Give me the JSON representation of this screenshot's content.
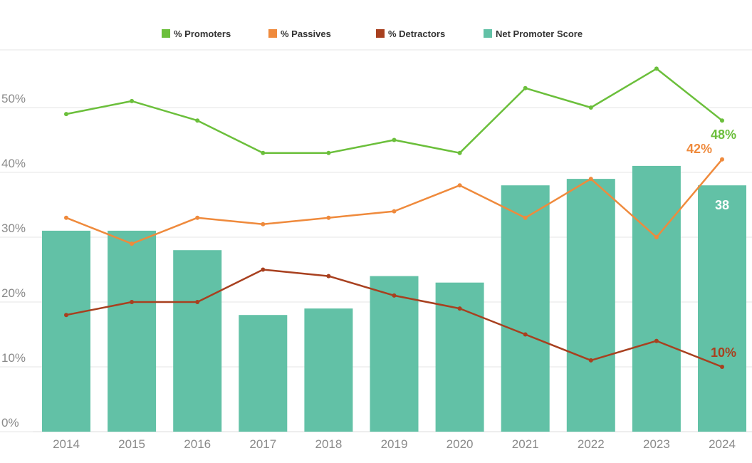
{
  "chart_data": {
    "type": "bar",
    "categories": [
      "2014",
      "2015",
      "2016",
      "2017",
      "2018",
      "2019",
      "2020",
      "2021",
      "2022",
      "2023",
      "2024"
    ],
    "ylim": [
      0,
      60
    ],
    "y_ticks": [
      "0%",
      "10%",
      "20%",
      "30%",
      "40%",
      "50%"
    ],
    "y_tick_values": [
      0,
      10,
      20,
      30,
      40,
      50
    ],
    "grid": true,
    "legend_position": "top",
    "bar_series": {
      "name": "Net Promoter Score",
      "color": "#62c1a6",
      "values": [
        31,
        31,
        28,
        18,
        19,
        24,
        23,
        38,
        39,
        41,
        38
      ],
      "end_label": "38"
    },
    "line_series": [
      {
        "name": "% Promoters",
        "color": "#6bbf3b",
        "values": [
          49,
          51,
          48,
          43,
          43,
          45,
          43,
          53,
          50,
          56,
          48
        ],
        "end_label": "48%"
      },
      {
        "name": "% Passives",
        "color": "#ef8a3c",
        "values": [
          33,
          29,
          33,
          32,
          33,
          34,
          38,
          33,
          39,
          30,
          42
        ],
        "end_label": "42%"
      },
      {
        "name": "% Detractors",
        "color": "#a8401f",
        "values": [
          18,
          20,
          20,
          25,
          24,
          21,
          19,
          15,
          11,
          14,
          10
        ],
        "end_label": "10%"
      }
    ]
  }
}
